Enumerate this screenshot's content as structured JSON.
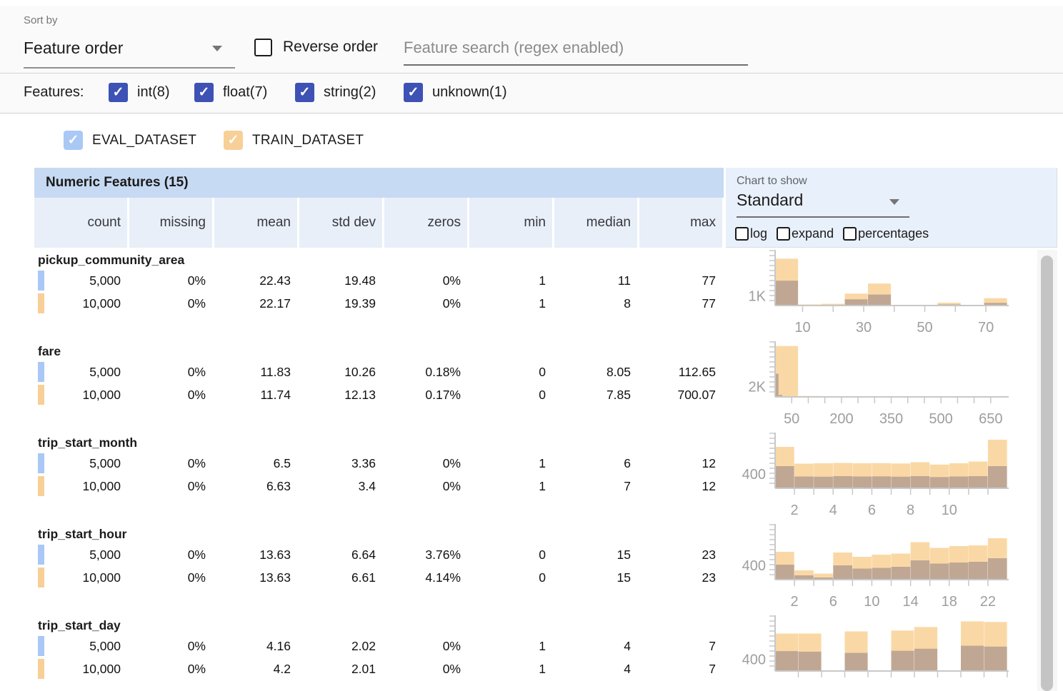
{
  "toolbar": {
    "sort_by_label": "Sort by",
    "sort_value": "Feature order",
    "reverse_label": "Reverse order",
    "search_placeholder": "Feature search (regex enabled)"
  },
  "filters": {
    "label": "Features:",
    "items": [
      {
        "label": "int(8)",
        "checked": true
      },
      {
        "label": "float(7)",
        "checked": true
      },
      {
        "label": "string(2)",
        "checked": true
      },
      {
        "label": "unknown(1)",
        "checked": true
      }
    ]
  },
  "legend": {
    "datasets": [
      {
        "label": "EVAL_DATASET",
        "color": "#A9C8F5",
        "checked": true
      },
      {
        "label": "TRAIN_DATASET",
        "color": "#F7CF97",
        "checked": true
      }
    ]
  },
  "table": {
    "title": "Numeric Features (15)",
    "columns": [
      "count",
      "missing",
      "mean",
      "std dev",
      "zeros",
      "min",
      "median",
      "max"
    ]
  },
  "chart_controls": {
    "label": "Chart to show",
    "selected": "Standard",
    "checkboxes": [
      {
        "label": "log",
        "checked": false
      },
      {
        "label": "expand",
        "checked": false
      },
      {
        "label": "percentages",
        "checked": false
      }
    ]
  },
  "features": [
    {
      "name": "pickup_community_area",
      "eval": [
        "5,000",
        "0%",
        "22.43",
        "19.48",
        "0%",
        "1",
        "11",
        "77"
      ],
      "train": [
        "10,000",
        "0%",
        "22.17",
        "19.39",
        "0%",
        "1",
        "8",
        "77"
      ]
    },
    {
      "name": "fare",
      "eval": [
        "5,000",
        "0%",
        "11.83",
        "10.26",
        "0.18%",
        "0",
        "8.05",
        "112.65"
      ],
      "train": [
        "10,000",
        "0%",
        "11.74",
        "12.13",
        "0.17%",
        "0",
        "7.85",
        "700.07"
      ]
    },
    {
      "name": "trip_start_month",
      "eval": [
        "5,000",
        "0%",
        "6.5",
        "3.36",
        "0%",
        "1",
        "6",
        "12"
      ],
      "train": [
        "10,000",
        "0%",
        "6.63",
        "3.4",
        "0%",
        "1",
        "7",
        "12"
      ]
    },
    {
      "name": "trip_start_hour",
      "eval": [
        "5,000",
        "0%",
        "13.63",
        "6.64",
        "3.76%",
        "0",
        "15",
        "23"
      ],
      "train": [
        "10,000",
        "0%",
        "13.63",
        "6.61",
        "4.14%",
        "0",
        "15",
        "23"
      ]
    },
    {
      "name": "trip_start_day",
      "eval": [
        "5,000",
        "0%",
        "4.16",
        "2.02",
        "0%",
        "1",
        "4",
        "7"
      ],
      "train": [
        "10,000",
        "0%",
        "4.2",
        "2.01",
        "0%",
        "1",
        "4",
        "7"
      ]
    }
  ],
  "chart_data": [
    {
      "type": "bar",
      "feature": "pickup_community_area",
      "y_axis_label": "1K",
      "y_label_value": 1000,
      "ymax": 5600,
      "x_range": [
        1,
        77
      ],
      "x_ticks": [
        10,
        20,
        30,
        40,
        50,
        60,
        70
      ],
      "x_tick_labels": [
        10,
        30,
        50,
        70
      ],
      "series": [
        {
          "name": "TRAIN_DATASET",
          "color": "#FAD8A5",
          "range": [
            1,
            77
          ],
          "counts": [
            4900,
            120,
            180,
            1250,
            2300,
            60,
            60,
            300,
            60,
            770
          ]
        },
        {
          "name": "EVAL_DATASET",
          "color": "rgba(104,96,122,0.40)",
          "range": [
            1,
            77
          ],
          "counts": [
            2600,
            60,
            80,
            650,
            1150,
            20,
            20,
            120,
            20,
            280
          ]
        }
      ]
    },
    {
      "type": "bar",
      "feature": "fare",
      "y_axis_label": "2K",
      "y_label_value": 2000,
      "ymax": 10200,
      "x_range": [
        0,
        700
      ],
      "x_ticks": [
        50,
        100,
        150,
        200,
        250,
        300,
        350,
        400,
        450,
        500,
        550,
        600,
        650
      ],
      "x_tick_labels": [
        50,
        200,
        350,
        500,
        650
      ],
      "series": [
        {
          "name": "TRAIN_DATASET",
          "color": "#FAD8A5",
          "range": [
            0,
            700.07
          ],
          "counts": [
            9700,
            180,
            60,
            25,
            15,
            8,
            5,
            3,
            2,
            2
          ]
        },
        {
          "name": "EVAL_DATASET",
          "color": "rgba(104,96,122,0.40)",
          "range": [
            0,
            112.65
          ],
          "counts": [
            4400,
            380,
            120,
            50,
            25,
            12,
            6,
            4,
            2,
            1
          ]
        }
      ]
    },
    {
      "type": "bar",
      "feature": "trip_start_month",
      "y_axis_label": "400",
      "y_label_value": 400,
      "ymax": 1500,
      "x_range": [
        1,
        13
      ],
      "x_ticks": [
        2,
        3,
        4,
        5,
        6,
        7,
        8,
        9,
        10,
        11,
        12
      ],
      "x_tick_labels": [
        2,
        4,
        6,
        8,
        10
      ],
      "series": [
        {
          "name": "TRAIN_DATASET",
          "color": "#FAD8A5",
          "range": [
            1,
            13
          ],
          "counts": [
            1160,
            690,
            700,
            710,
            700,
            705,
            695,
            730,
            665,
            700,
            750,
            1360
          ]
        },
        {
          "name": "EVAL_DATASET",
          "color": "rgba(104,96,122,0.40)",
          "range": [
            1,
            13
          ],
          "counts": [
            620,
            330,
            325,
            340,
            330,
            335,
            325,
            340,
            315,
            330,
            340,
            620
          ]
        }
      ]
    },
    {
      "type": "bar",
      "feature": "trip_start_hour",
      "y_axis_label": "400",
      "y_label_value": 400,
      "ymax": 1500,
      "x_range": [
        0,
        24
      ],
      "x_ticks": [
        2,
        4,
        6,
        8,
        10,
        12,
        14,
        16,
        18,
        20,
        22
      ],
      "x_tick_labels": [
        2,
        6,
        10,
        14,
        18,
        22
      ],
      "series": [
        {
          "name": "TRAIN_DATASET",
          "color": "#FAD8A5",
          "range": [
            0,
            24
          ],
          "counts": [
            780,
            260,
            170,
            760,
            640,
            700,
            730,
            1050,
            890,
            940,
            960,
            1160
          ]
        },
        {
          "name": "EVAL_DATASET",
          "color": "rgba(104,96,122,0.40)",
          "range": [
            0,
            24
          ],
          "counts": [
            420,
            120,
            60,
            400,
            310,
            330,
            360,
            540,
            450,
            480,
            500,
            600
          ]
        }
      ]
    },
    {
      "type": "bar",
      "feature": "trip_start_day",
      "y_axis_label": "400",
      "y_label_value": 400,
      "ymax": 1800,
      "x_range": [
        1,
        7.6
      ],
      "x_ticks": [
        1.66,
        2.32,
        2.98,
        3.64,
        4.3,
        4.96,
        5.62,
        6.28,
        6.94,
        7.6
      ],
      "x_tick_labels": [],
      "series": [
        {
          "name": "TRAIN_DATASET",
          "color": "#FAD8A5",
          "range": [
            1,
            7.6
          ],
          "counts": [
            1260,
            1260,
            0,
            1330,
            0,
            1360,
            1480,
            0,
            1670,
            1650
          ]
        },
        {
          "name": "EVAL_DATASET",
          "color": "rgba(104,96,122,0.40)",
          "range": [
            1,
            7.6
          ],
          "counts": [
            670,
            650,
            0,
            610,
            0,
            680,
            750,
            0,
            850,
            820
          ]
        }
      ]
    }
  ],
  "colors": {
    "checkbox_indigo": "#3D52B4",
    "header_band": "#C7DAF3",
    "subheader_band": "#E9EFF9",
    "chart_panel": "#E8F0FB",
    "bar_train": "#FAD8A5",
    "bar_eval_overlay": "rgba(104,96,122,0.40)",
    "axis_gray": "#C8C8C8",
    "tick_text_gray": "#9E9E9E"
  }
}
